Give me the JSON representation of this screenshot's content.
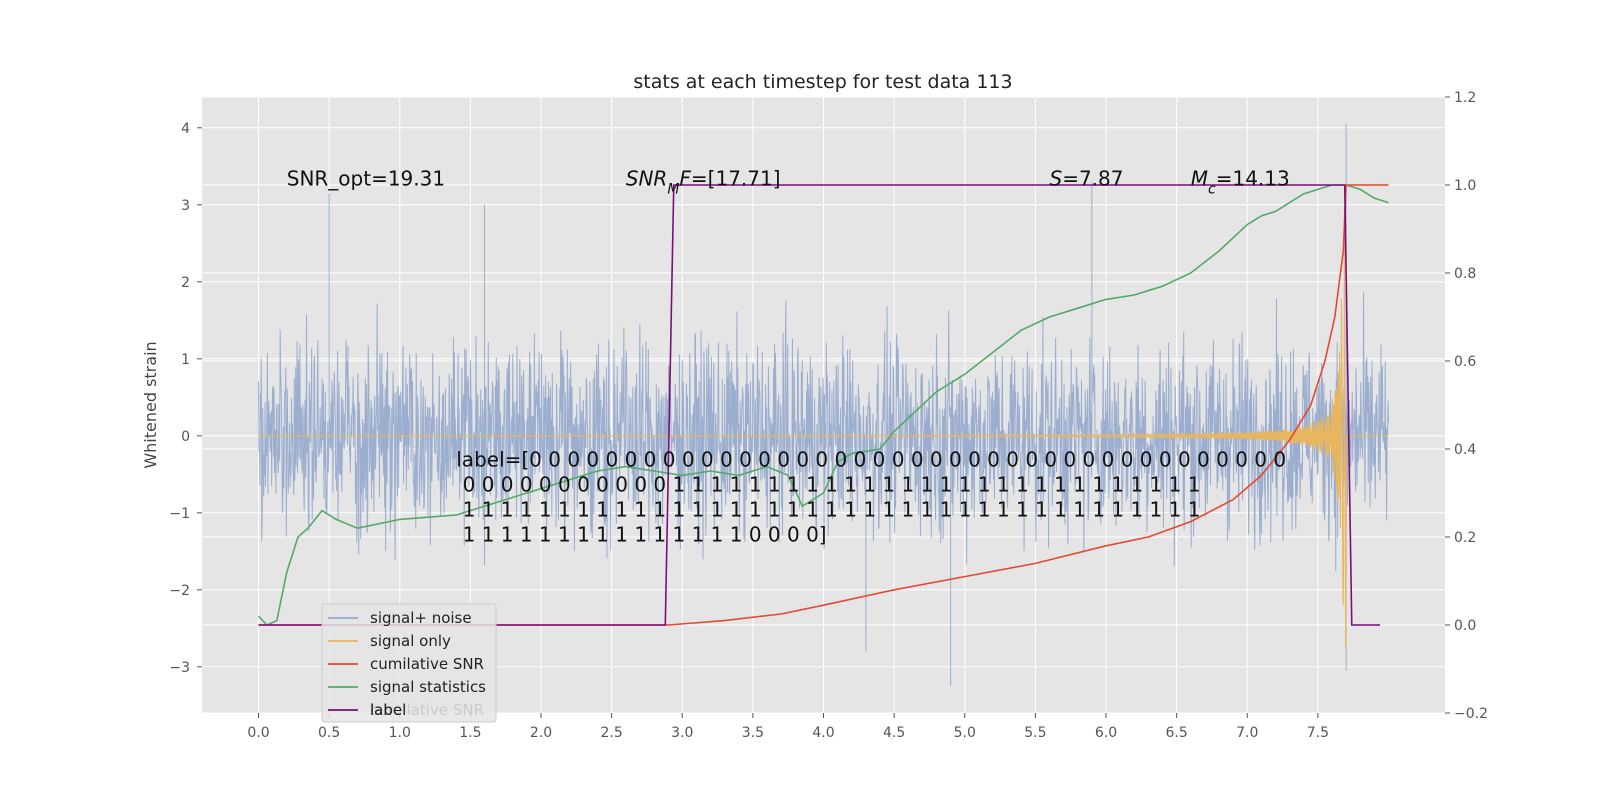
{
  "chart_data": {
    "type": "line",
    "title": "stats at each timestep for test data 113",
    "ylabel": "Whitened strain",
    "xlim": [
      -0.4,
      8.4
    ],
    "ylim": [
      -3.6,
      4.4
    ],
    "y2lim": [
      -0.2,
      1.2
    ],
    "grid": true,
    "x_ticks": [
      "0.0",
      "0.5",
      "1.0",
      "1.5",
      "2.0",
      "2.5",
      "3.0",
      "3.5",
      "4.0",
      "4.5",
      "5.0",
      "5.5",
      "6.0",
      "6.5",
      "7.0",
      "7.5"
    ],
    "y_ticks": [
      "4",
      "3",
      "2",
      "1",
      "0",
      "−1",
      "−2",
      "−3"
    ],
    "y2_ticks": [
      "1.2",
      "1.0",
      "0.8",
      "0.6",
      "0.4",
      "0.2",
      "0.0",
      "−0.2"
    ],
    "noise_seed": 113,
    "series": [
      {
        "name": "signal+ noise",
        "color": "#97abcd",
        "axis": "left",
        "x_range": [
          0.0,
          8.0
        ],
        "spikes": [
          [
            0.5,
            3.15
          ],
          [
            1.6,
            3.0
          ],
          [
            5.9,
            3.3
          ],
          [
            7.7,
            4.05
          ],
          [
            4.9,
            -3.25
          ],
          [
            4.3,
            -2.8
          ],
          [
            7.7,
            -3.05
          ]
        ]
      },
      {
        "name": "signal only",
        "color": "#e8b65e",
        "axis": "left",
        "chirp_end": 7.7,
        "amplitude_end": 3.0
      },
      {
        "name": "cumilative SNR",
        "color": "#e24a33",
        "axis": "right",
        "x": [
          0.0,
          2.9,
          3.3,
          3.7,
          4.0,
          4.5,
          5.0,
          5.5,
          6.0,
          6.3,
          6.6,
          6.9,
          7.1,
          7.3,
          7.45,
          7.55,
          7.62,
          7.68,
          7.7,
          7.75,
          8.0
        ],
        "y": [
          0.0,
          0.0,
          0.01,
          0.025,
          0.045,
          0.08,
          0.11,
          0.14,
          0.18,
          0.2,
          0.235,
          0.285,
          0.34,
          0.42,
          0.5,
          0.6,
          0.7,
          0.85,
          1.0,
          1.0,
          1.0
        ]
      },
      {
        "name": "signal statistics",
        "color": "#55a868",
        "axis": "right",
        "x": [
          0.0,
          0.06,
          0.13,
          0.2,
          0.28,
          0.35,
          0.45,
          0.55,
          0.7,
          0.85,
          1.0,
          1.2,
          1.4,
          1.6,
          1.8,
          2.0,
          2.2,
          2.4,
          2.6,
          2.8,
          3.0,
          3.2,
          3.4,
          3.6,
          3.75,
          3.85,
          4.0,
          4.1,
          4.2,
          4.4,
          4.5,
          4.6,
          4.8,
          5.0,
          5.2,
          5.4,
          5.6,
          5.8,
          6.0,
          6.2,
          6.4,
          6.6,
          6.8,
          6.9,
          7.0,
          7.1,
          7.2,
          7.3,
          7.4,
          7.5,
          7.6,
          7.7,
          7.8,
          7.9,
          8.0
        ],
        "y": [
          0.02,
          0.0,
          0.01,
          0.12,
          0.2,
          0.22,
          0.26,
          0.24,
          0.22,
          0.23,
          0.24,
          0.245,
          0.25,
          0.27,
          0.29,
          0.31,
          0.33,
          0.35,
          0.36,
          0.35,
          0.34,
          0.35,
          0.34,
          0.36,
          0.34,
          0.27,
          0.3,
          0.37,
          0.39,
          0.4,
          0.44,
          0.47,
          0.53,
          0.57,
          0.62,
          0.67,
          0.7,
          0.72,
          0.74,
          0.75,
          0.77,
          0.8,
          0.85,
          0.88,
          0.91,
          0.93,
          0.94,
          0.96,
          0.98,
          0.99,
          1.0,
          1.0,
          0.99,
          0.97,
          0.96
        ]
      },
      {
        "name": "label",
        "color": "#7b0e7b",
        "axis": "right",
        "x": [
          0.0,
          2.88,
          2.94,
          7.69,
          7.74,
          7.94
        ],
        "y": [
          0.0,
          0.0,
          1.0,
          1.0,
          0.0,
          0.0
        ]
      }
    ],
    "annotations": [
      {
        "id": "snr_opt",
        "text": "SNR_opt=19.31",
        "x": 0.2,
        "y": 3.25
      },
      {
        "id": "snr_mf",
        "text": "SNR",
        "sub": "M",
        "rest": "F=[17.71]",
        "x": 2.6,
        "y": 3.25
      },
      {
        "id": "s_stat",
        "text": "S",
        "rest": "=7.87",
        "x": 5.6,
        "y": 3.25
      },
      {
        "id": "mc",
        "text": "M",
        "sub": "c",
        "rest": "=14.13",
        "x": 6.6,
        "y": 3.25
      }
    ],
    "label_array": {
      "x": 1.4,
      "y": -0.4,
      "lines": [
        "label=[0 0 0 0 0 0 0 0 0 0 0 0 0 0 0 0 0 0 0 0 0 0 0 0 0 0 0 0 0 0 0 0 0 0 0 0 0 0 0 0",
        " 0 0 0 0 0 0 0 0 0 0 0 1 1 1 1 1 1 1 1 1 1 1 1 1 1 1 1 1 1 1 1 1 1 1 1 1 1 1 1",
        " 1 1 1 1 1 1 1 1 1 1 1 1 1 1 1 1 1 1 1 1 1 1 1 1 1 1 1 1 1 1 1 1 1 1 1 1 1 1 1",
        " 1 1 1 1 1 1 1 1 1 1 1 1 1 1 1 0 0 0 0]"
      ]
    },
    "legend": {
      "placement": "lower-left",
      "entries": [
        "signal+ noise",
        "signal only",
        "cumilative SNR",
        "signal statistics",
        "label"
      ],
      "ghost_text": "cumilative SNR"
    }
  }
}
